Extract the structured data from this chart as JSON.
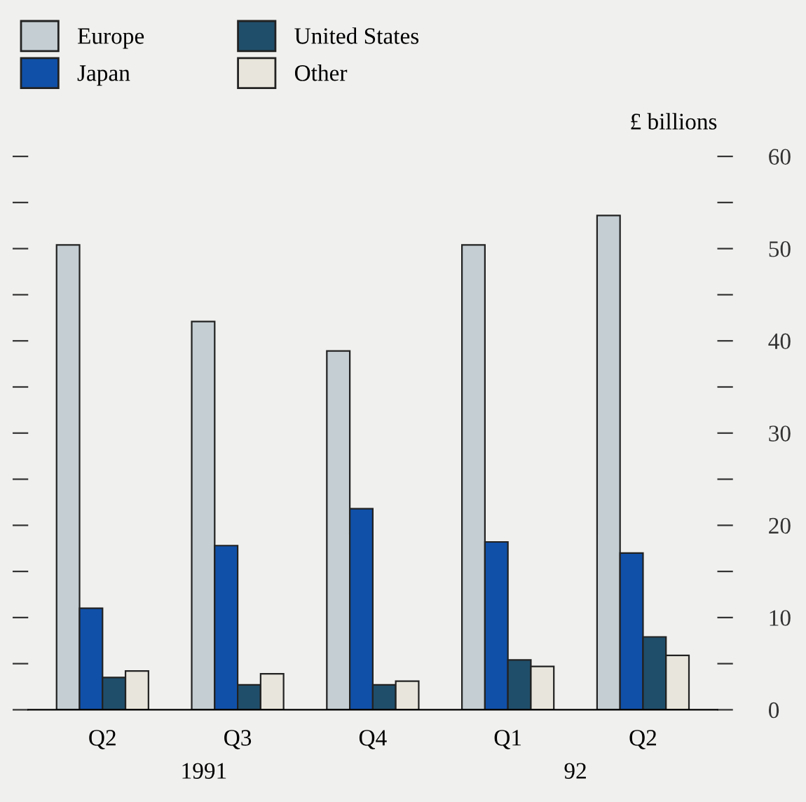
{
  "chart_data": {
    "type": "bar",
    "categories": [
      "Q2",
      "Q3",
      "Q4",
      "Q1",
      "Q2"
    ],
    "ylabel": "£ billions",
    "series": [
      {
        "name": "Europe",
        "color": "#c4ced3",
        "values": [
          50.4,
          42.1,
          38.9,
          50.4,
          53.6
        ]
      },
      {
        "name": "Japan",
        "color": "#1050a8",
        "values": [
          11.0,
          17.8,
          21.8,
          18.2,
          17.0
        ]
      },
      {
        "name": "United States",
        "color": "#1f4e6a",
        "values": [
          3.5,
          2.7,
          2.7,
          5.4,
          7.9
        ]
      },
      {
        "name": "Other",
        "color": "#e8e6dc",
        "values": [
          4.2,
          3.9,
          3.1,
          4.7,
          5.9
        ]
      }
    ],
    "annotations": [
      "1991",
      "92"
    ],
    "ylim": [
      0,
      60
    ],
    "yticks": [
      0,
      {
        "value": 5,
        "label": null
      },
      10,
      {
        "value": 15,
        "label": null
      },
      20,
      {
        "value": 25,
        "label": null
      },
      30,
      {
        "value": 35,
        "label": null
      },
      40,
      {
        "value": 45,
        "label": null
      },
      50,
      {
        "value": 55,
        "label": null
      },
      60
    ],
    "grid": false,
    "legend": "top left"
  }
}
